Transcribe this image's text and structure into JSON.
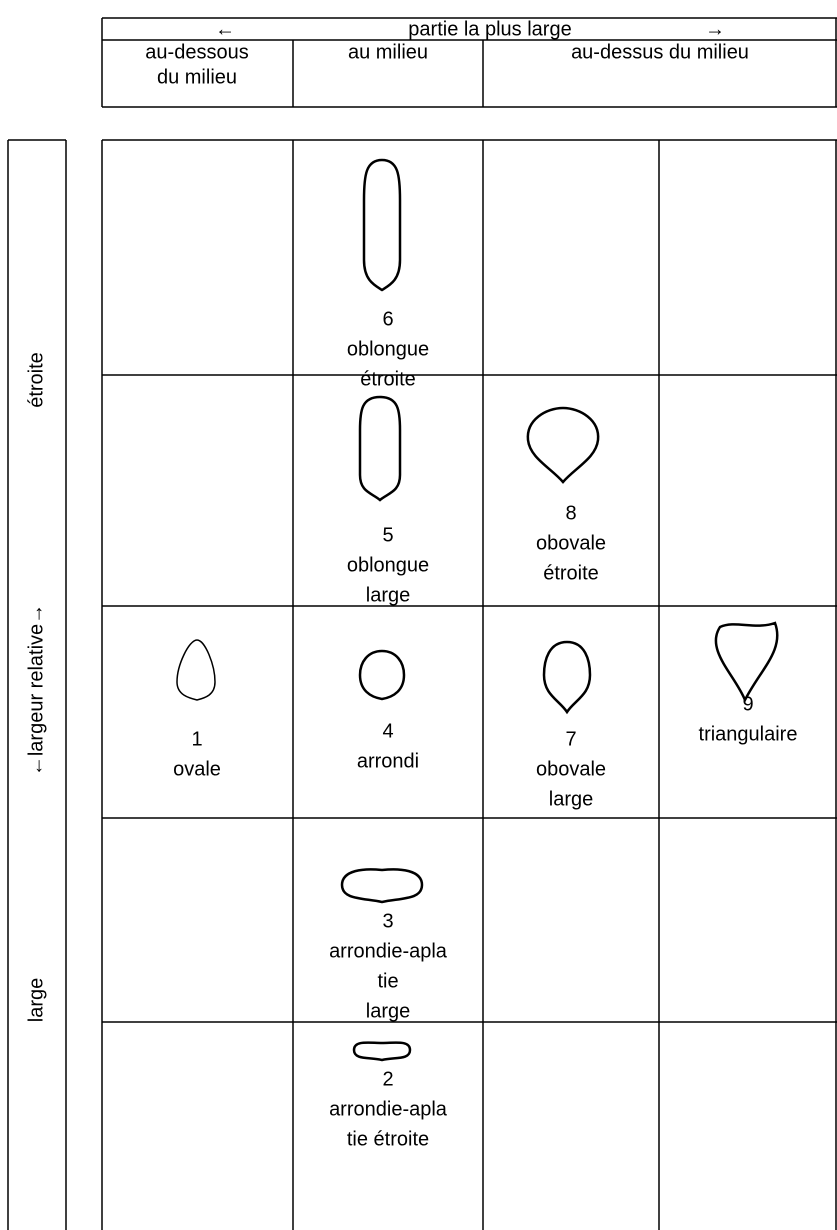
{
  "header": {
    "arrow_left": "←",
    "title": "partie la plus large",
    "arrow_right": "→",
    "columns": [
      [
        "au-dessous",
        "du milieu"
      ],
      [
        "au milieu"
      ],
      [
        "au-dessus du milieu"
      ]
    ]
  },
  "side": {
    "labels": [
      "étroite",
      "←largeur relative→",
      "large"
    ]
  },
  "table": {
    "rows": [
      [
        null,
        {
          "number": 6,
          "label": [
            "oblongue",
            "étroite"
          ]
        },
        null,
        null
      ],
      [
        null,
        {
          "number": 5,
          "label": [
            "oblongue",
            "large"
          ]
        },
        {
          "number": 8,
          "label": [
            "obovale",
            "étroite"
          ]
        },
        null
      ],
      [
        {
          "number": 1,
          "label": [
            "ovale"
          ]
        },
        {
          "number": 4,
          "label": [
            "arrondi"
          ]
        },
        {
          "number": 7,
          "label": [
            "obovale",
            "large"
          ]
        },
        {
          "number": 9,
          "label": [
            "triangulaire"
          ]
        }
      ],
      [
        null,
        {
          "number": 3,
          "label": [
            "arrondie-apla",
            "tie",
            "large"
          ]
        },
        null,
        null
      ],
      [
        null,
        {
          "number": 2,
          "label": [
            "arrondie-apla",
            "tie étroite"
          ]
        },
        null,
        null
      ]
    ]
  }
}
